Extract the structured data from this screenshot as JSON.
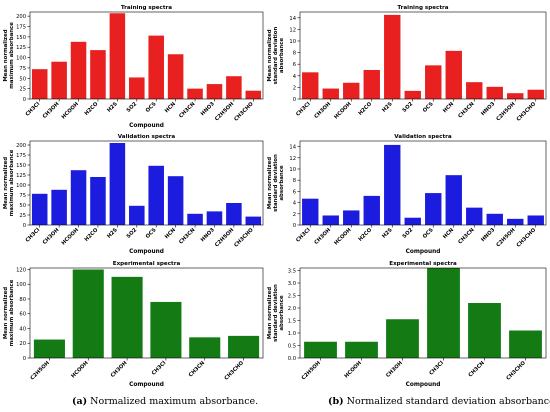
{
  "chart_data": [
    {
      "type": "bar",
      "title": "Training spectra",
      "xlabel": "Compound",
      "ylabel": "Mean normalized maximum absorbance",
      "ylabel_lines": [
        "Mean normalized",
        "maximum absorbance"
      ],
      "categories": [
        "CH3Cl",
        "CH3OH",
        "HCOOH",
        "H2CO",
        "H2S",
        "SO2",
        "OCS",
        "HCN",
        "CH3CN",
        "HNO3",
        "C2H5OH",
        "CH3CHO"
      ],
      "values": [
        72,
        90,
        138,
        118,
        207,
        52,
        153,
        108,
        25,
        36,
        55,
        20
      ],
      "ylim": [
        0,
        210
      ],
      "yticks": [
        0,
        25,
        50,
        75,
        100,
        125,
        150,
        175,
        200
      ],
      "color": "#e8201f",
      "grid": false
    },
    {
      "type": "bar",
      "title": "Training spectra",
      "xlabel": "",
      "ylabel": "Mean normalized standard deviation absorbance",
      "ylabel_lines": [
        "Mean normalized",
        "standard deviation",
        "absorbance"
      ],
      "categories": [
        "CH3Cl",
        "CH3OH",
        "HCOOH",
        "H2CO",
        "H2S",
        "SO2",
        "OCS",
        "HCN",
        "CH3CN",
        "HNO3",
        "C2H5OH",
        "CH3CHO"
      ],
      "values": [
        4.6,
        1.8,
        2.8,
        5.0,
        14.5,
        1.4,
        5.8,
        8.3,
        2.9,
        2.1,
        1.0,
        1.6
      ],
      "ylim": [
        0,
        15
      ],
      "yticks": [
        0,
        2,
        4,
        6,
        8,
        10,
        12,
        14
      ],
      "color": "#e8201f",
      "grid": false
    },
    {
      "type": "bar",
      "title": "Validation spectra",
      "xlabel": "Compound",
      "ylabel": "Mean normalized maximum absorbance",
      "ylabel_lines": [
        "Mean normalized",
        "maximum absorbance"
      ],
      "categories": [
        "CH3Cl",
        "CH3OH",
        "HCOOH",
        "H2CO",
        "H2S",
        "SO2",
        "OCS",
        "HCN",
        "CH3CN",
        "HNO3",
        "C2H5OH",
        "CH3CHO"
      ],
      "values": [
        78,
        88,
        137,
        120,
        205,
        48,
        148,
        122,
        28,
        34,
        55,
        21
      ],
      "ylim": [
        0,
        210
      ],
      "yticks": [
        0,
        25,
        50,
        75,
        100,
        125,
        150,
        175,
        200
      ],
      "color": "#1c1cde",
      "grid": false
    },
    {
      "type": "bar",
      "title": "Validation spectra",
      "xlabel": "Compound",
      "ylabel": "Mean normalized standard deviation absorbance",
      "ylabel_lines": [
        "Mean normalized",
        "standard deviation",
        "absorbance"
      ],
      "categories": [
        "CH3Cl",
        "CH3OH",
        "HCOOH",
        "H2CO",
        "H2S",
        "SO2",
        "OCS",
        "HCN",
        "CH3CN",
        "HNO3",
        "C2H5OH",
        "CH3CHO"
      ],
      "values": [
        4.7,
        1.7,
        2.6,
        5.2,
        14.3,
        1.3,
        5.7,
        8.9,
        3.1,
        2.0,
        1.1,
        1.7
      ],
      "ylim": [
        0,
        15
      ],
      "yticks": [
        0,
        2,
        4,
        6,
        8,
        10,
        12,
        14
      ],
      "color": "#1c1cde",
      "grid": false
    },
    {
      "type": "bar",
      "title": "Experimental spectra",
      "xlabel": "Compound",
      "ylabel": "Mean normalized maximum absorbance",
      "ylabel_lines": [
        "Mean normalized",
        "maximum absorbance"
      ],
      "categories": [
        "C2H5OH",
        "HCOOH",
        "CH3OH",
        "CH3Cl",
        "CH3CN",
        "CH3CHO"
      ],
      "values": [
        25,
        120,
        110,
        76,
        28,
        30
      ],
      "ylim": [
        0,
        122
      ],
      "yticks": [
        0,
        20,
        40,
        60,
        80,
        100,
        120
      ],
      "color": "#147a14",
      "grid": false
    },
    {
      "type": "bar",
      "title": "Experimental spectra",
      "xlabel": "Compound",
      "ylabel": "Mean normalized standard deviation absorbance",
      "ylabel_lines": [
        "Mean normalized",
        "standard deviation",
        "absorbance"
      ],
      "categories": [
        "C2H5OH",
        "HCOOH",
        "CH3OH",
        "CH3Cl",
        "CH3CN",
        "CH3CHO"
      ],
      "values": [
        0.65,
        0.65,
        1.55,
        3.6,
        2.2,
        1.1
      ],
      "ylim": [
        0,
        3.6
      ],
      "yticks": [
        0.0,
        0.5,
        1.0,
        1.5,
        2.0,
        2.5,
        3.0,
        3.5
      ],
      "ytick_decimals": 1,
      "color": "#147a14",
      "grid": false
    }
  ],
  "captions": {
    "left": {
      "label": "(a)",
      "text": " Normalized maximum absorbance."
    },
    "right": {
      "label": "(b)",
      "text": " Normalized standard deviation absorbance."
    }
  }
}
